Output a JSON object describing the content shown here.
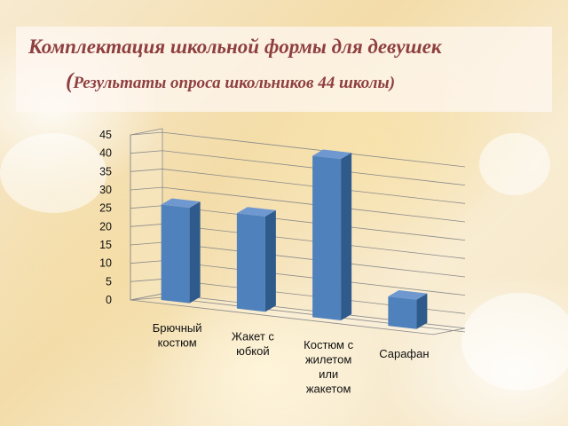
{
  "title": {
    "line1": "Комплектация школьной формы для девушек",
    "line2_paren": "(",
    "line2_text": "Результаты опроса школьников 44 школы)"
  },
  "chart_data": {
    "type": "bar",
    "style": "3d",
    "categories": [
      [
        "Брючный",
        "костюм"
      ],
      [
        "Жакет с",
        "юбкой"
      ],
      [
        "Костюм с",
        "жилетом",
        "или",
        "жакетом"
      ],
      [
        "Сарафан"
      ]
    ],
    "values": [
      26,
      26,
      44,
      8
    ],
    "ylim": [
      0,
      45
    ],
    "yticks": [
      0,
      5,
      10,
      15,
      20,
      25,
      30,
      35,
      40,
      45
    ],
    "grid": true,
    "legend": "none",
    "colors": {
      "bar_front": "#4f81bd",
      "bar_side": "#2f5a8c",
      "bar_top": "#6e98cf",
      "grid": "#8a8a8a",
      "tick_text": "#111111"
    }
  }
}
